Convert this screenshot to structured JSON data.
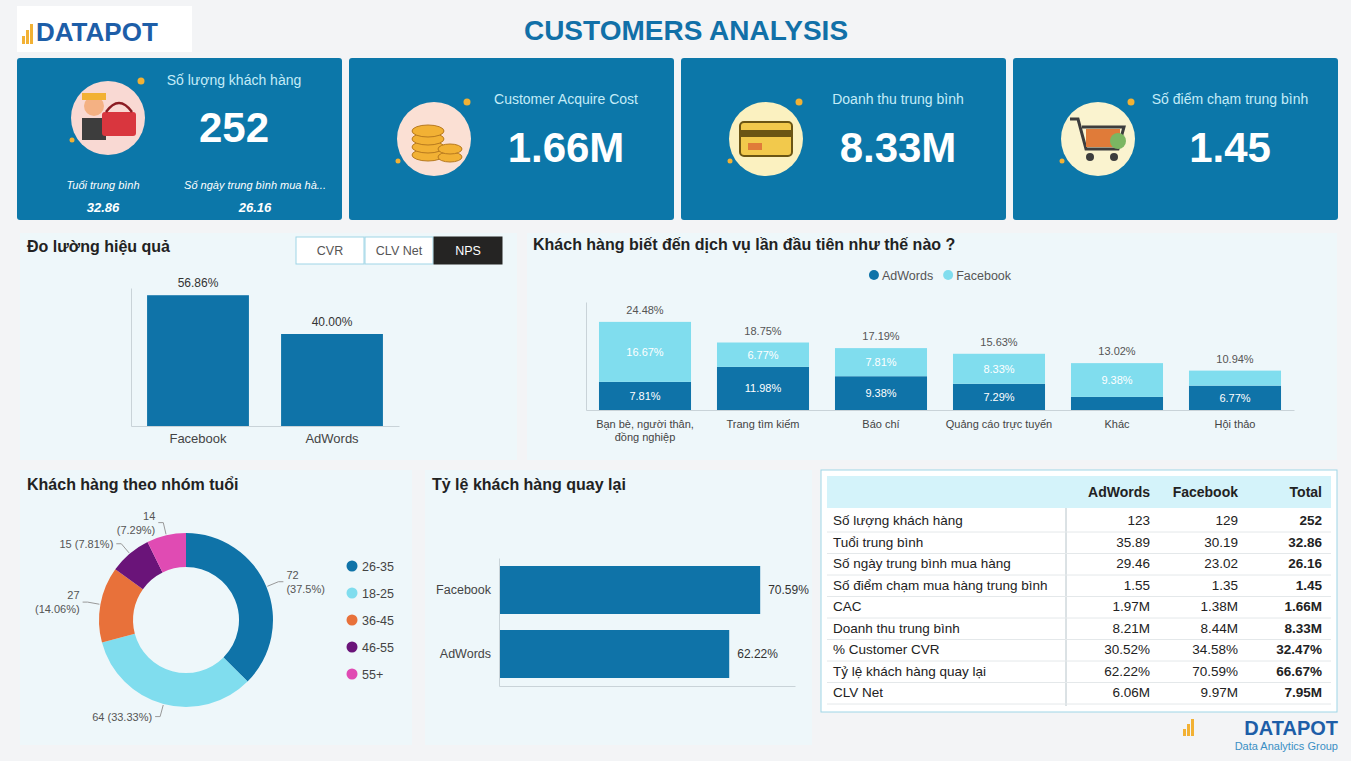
{
  "header": {
    "title": "CUSTOMERS ANALYSIS",
    "logo": "DATAPOT",
    "watermark": "DATAPOT",
    "watermark_sub": "Data Analytics Group"
  },
  "kpis": [
    {
      "label": "Số lượng khách hàng",
      "value": "252",
      "sub": [
        {
          "label": "Tuổi trung bình",
          "value": "32.86"
        },
        {
          "label": "Số ngày trung bình mua hà...",
          "value": "26.16"
        }
      ]
    },
    {
      "label": "Customer Acquire Cost",
      "value": "1.66M"
    },
    {
      "label": "Doanh thu trung bình",
      "value": "8.33M"
    },
    {
      "label": "Số điểm chạm trung bình",
      "value": "1.45"
    }
  ],
  "slicer": {
    "buttons": [
      "CVR",
      "CLV Net",
      "NPS"
    ],
    "selected": "NPS"
  },
  "chart_data": [
    {
      "type": "bar",
      "title": "Đo lường hiệu quả",
      "categories": [
        "Facebook",
        "AdWords"
      ],
      "values": [
        56.86,
        40.0
      ],
      "value_labels": [
        "56.86%",
        "40.00%"
      ],
      "color": "#0f73a8",
      "ylim": [
        0,
        60
      ],
      "yticks": [],
      "data_labels": true,
      "tick_labels": "x"
    },
    {
      "type": "bar",
      "title": "Khách hàng biết đến dịch vụ lần đầu tiên như thế nào ?",
      "categories": [
        "Bạn bè, người thân, đồng nghiệp",
        "Trang tìm kiếm",
        "Báo chí",
        "Quảng cáo trực tuyến",
        "Khác",
        "Hội thảo"
      ],
      "series": [
        {
          "name": "AdWords",
          "color": "#0f73a8",
          "values": [
            7.81,
            11.98,
            9.38,
            7.29,
            3.64,
            6.77
          ],
          "value_labels": [
            "7.81%",
            "11.98%",
            "9.38%",
            "7.29%",
            null,
            "6.77%"
          ]
        },
        {
          "name": "Facebook",
          "color": "#80ddee",
          "values": [
            16.67,
            6.77,
            7.81,
            8.33,
            9.38,
            4.17
          ],
          "value_labels": [
            "16.67%",
            "6.77%",
            "7.81%",
            "8.33%",
            "9.38%",
            null
          ]
        }
      ],
      "totals": [
        24.48,
        18.75,
        17.19,
        15.63,
        13.02,
        10.94
      ],
      "total_labels": [
        "24.48%",
        "18.75%",
        "17.19%",
        "15.63%",
        "13.02%",
        "10.94%"
      ],
      "stacked": true,
      "legend": "top",
      "ylim": [
        0,
        30
      ],
      "yticks": [],
      "data_labels": true,
      "tick_labels": "x"
    },
    {
      "type": "pie",
      "title": "Khách hàng theo nhóm tuổi",
      "categories": [
        "26-35",
        "18-25",
        "36-45",
        "46-55",
        "55+"
      ],
      "values": [
        72,
        64,
        27,
        15,
        14
      ],
      "value_labels": [
        "72 (37.5%)",
        "64 (33.33%)",
        "27 (14.06%)",
        "15 (7.81%)",
        "14 (7.29%)"
      ],
      "colors": [
        "#0f73a8",
        "#80ddee",
        "#e8713a",
        "#6a1479",
        "#e04bb3"
      ],
      "legend": "right",
      "data_labels": true
    },
    {
      "type": "bar",
      "title": "Tỷ lệ khách hàng quay lại",
      "orientation": "horizontal",
      "categories": [
        "Facebook",
        "AdWords"
      ],
      "values": [
        70.59,
        62.22
      ],
      "value_labels": [
        "70.59%",
        "62.22%"
      ],
      "color": "#0f73a8",
      "xlim": [
        0,
        80
      ],
      "xticks": [],
      "data_labels": true,
      "tick_labels": "y"
    }
  ],
  "table": {
    "columns": [
      "AdWords",
      "Facebook",
      "Total"
    ],
    "rows": [
      {
        "label": "Số lượng khách hàng",
        "values": [
          "123",
          "129",
          "252"
        ]
      },
      {
        "label": "Tuổi trung bình",
        "values": [
          "35.89",
          "30.19",
          "32.86"
        ]
      },
      {
        "label": "Số ngày trung bình mua hàng",
        "values": [
          "29.46",
          "23.02",
          "26.16"
        ]
      },
      {
        "label": "Số điểm chạm mua hàng trung bình",
        "values": [
          "1.55",
          "1.35",
          "1.45"
        ]
      },
      {
        "label": "CAC",
        "values": [
          "1.97M",
          "1.38M",
          "1.66M"
        ]
      },
      {
        "label": "Doanh thu trung bình",
        "values": [
          "8.21M",
          "8.44M",
          "8.33M"
        ]
      },
      {
        "label": "% Customer CVR",
        "values": [
          "30.52%",
          "34.58%",
          "32.47%"
        ]
      },
      {
        "label": "Tỷ lệ khách hàng quay lại",
        "values": [
          "62.22%",
          "70.59%",
          "66.67%"
        ]
      },
      {
        "label": "CLV Net",
        "values": [
          "6.06M",
          "9.97M",
          "7.95M"
        ]
      }
    ]
  }
}
